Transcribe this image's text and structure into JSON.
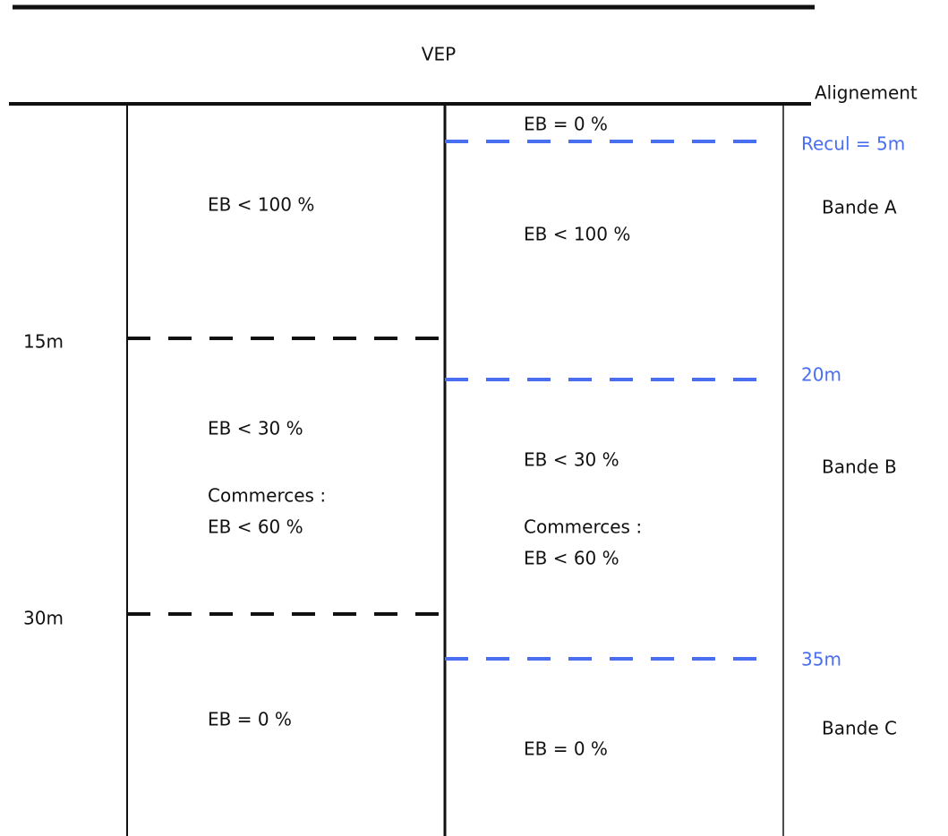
{
  "road": {
    "label": "VEP",
    "boundary": "Alignement"
  },
  "left_column": {
    "cells": [
      {
        "lines": [
          "EB < 100 %"
        ]
      },
      {
        "lines": [
          "EB < 30 %",
          "Commerces :",
          "EB < 60 %"
        ]
      },
      {
        "lines": [
          "EB = 0 %"
        ]
      }
    ],
    "limits": [
      "15m",
      "30m"
    ]
  },
  "right_column": {
    "cells": [
      {
        "lines": [
          "EB = 0 %"
        ]
      },
      {
        "lines": [
          "EB < 100 %"
        ]
      },
      {
        "lines": [
          "EB < 30 %",
          "Commerces :",
          "EB < 60 %"
        ]
      },
      {
        "lines": [
          "EB = 0 %"
        ]
      }
    ],
    "limits": [
      "Recul = 5m",
      "20m",
      "35m"
    ]
  },
  "bands": [
    "Bande A",
    "Bande B",
    "Bande C"
  ]
}
